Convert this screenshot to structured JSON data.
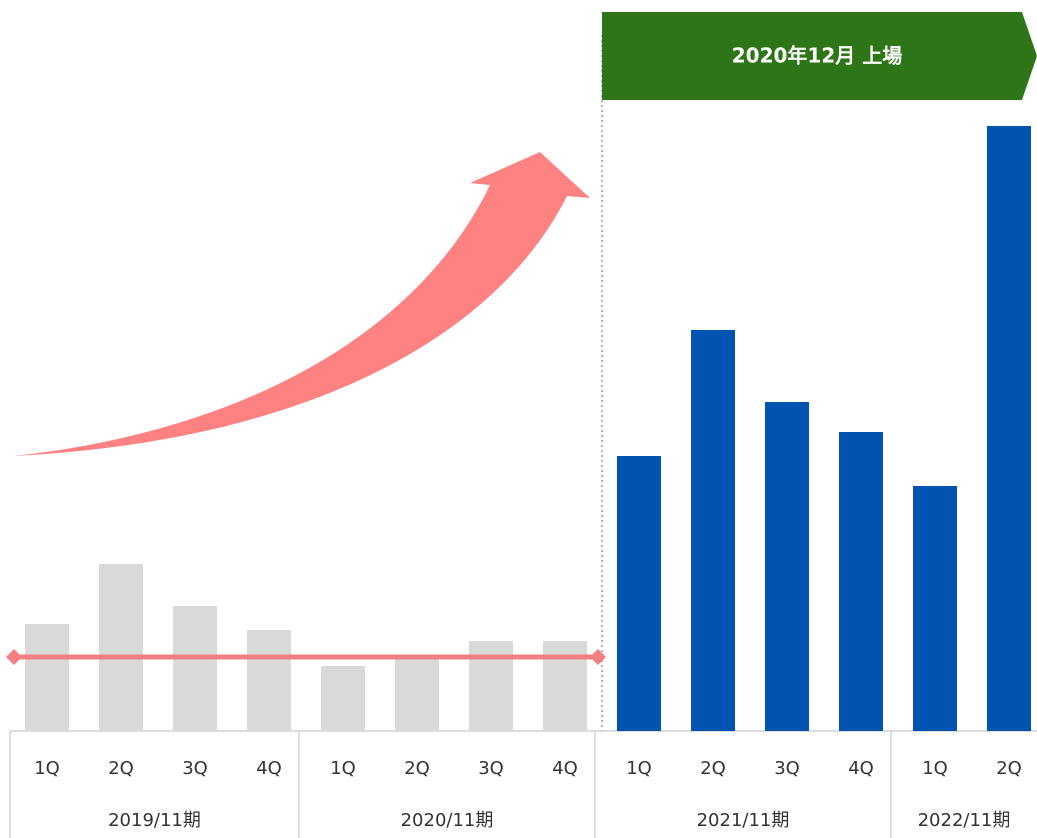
{
  "chart_data": {
    "type": "bar",
    "banner": "2020年12月 上場",
    "categories": [
      "1Q",
      "2Q",
      "3Q",
      "4Q",
      "1Q",
      "2Q",
      "3Q",
      "4Q",
      "1Q",
      "2Q",
      "3Q",
      "4Q",
      "1Q",
      "2Q"
    ],
    "values": [
      107,
      167,
      125,
      101,
      65,
      73,
      90,
      90,
      275,
      401,
      329,
      299,
      245,
      605
    ],
    "colors": [
      "#d9d9d9",
      "#d9d9d9",
      "#d9d9d9",
      "#d9d9d9",
      "#d9d9d9",
      "#d9d9d9",
      "#d9d9d9",
      "#d9d9d9",
      "#0054b0",
      "#0054b0",
      "#0054b0",
      "#0054b0",
      "#0054b0",
      "#0054b0"
    ],
    "groups": [
      {
        "label": "2019/11期",
        "size": 4
      },
      {
        "label": "2020/11期",
        "size": 4
      },
      {
        "label": "2021/11期",
        "size": 4
      },
      {
        "label": "2022/11期",
        "size": 2
      }
    ],
    "reference_line": {
      "value": 74,
      "color": "#f28080",
      "size": 8
    },
    "ylim": [
      0,
      731
    ]
  }
}
